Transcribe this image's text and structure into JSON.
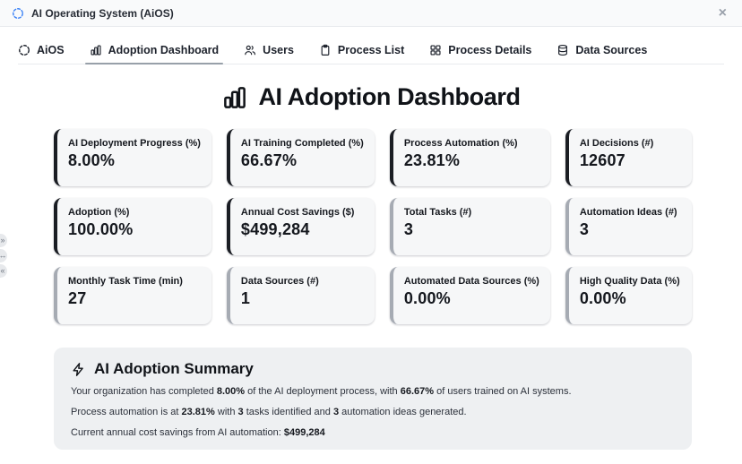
{
  "window": {
    "title": "AI Operating System (AiOS)",
    "app_icon": "dashed-circle",
    "app_icon_color": "#3b82f6",
    "close_label": "×"
  },
  "tabs": [
    {
      "label": "AiOS",
      "icon": "dashed-circle",
      "active": false
    },
    {
      "label": "Adoption Dashboard",
      "icon": "bar-chart",
      "active": true
    },
    {
      "label": "Users",
      "icon": "users",
      "active": false
    },
    {
      "label": "Process List",
      "icon": "clipboard",
      "active": false
    },
    {
      "label": "Process Details",
      "icon": "grid",
      "active": false
    },
    {
      "label": "Data Sources",
      "icon": "database",
      "active": false
    }
  ],
  "heading": {
    "title": "AI Adoption Dashboard",
    "icon": "bar-chart"
  },
  "accent_colors": {
    "dark": "#1a1d23",
    "gray": "#a6abb3"
  },
  "cards": [
    {
      "label": "AI Deployment Progress (%)",
      "value": "8.00%",
      "accent": "#1a1d23"
    },
    {
      "label": "AI Training Completed (%)",
      "value": "66.67%",
      "accent": "#1a1d23"
    },
    {
      "label": "Process Automation (%)",
      "value": "23.81%",
      "accent": "#1a1d23"
    },
    {
      "label": "AI Decisions (#)",
      "value": "12607",
      "accent": "#1a1d23"
    },
    {
      "label": "Adoption (%)",
      "value": "100.00%",
      "accent": "#1a1d23"
    },
    {
      "label": "Annual Cost Savings ($)",
      "value": "$499,284",
      "accent": "#1a1d23"
    },
    {
      "label": "Total Tasks (#)",
      "value": "3",
      "accent": "#a6abb3"
    },
    {
      "label": "Automation Ideas (#)",
      "value": "3",
      "accent": "#a6abb3"
    },
    {
      "label": "Monthly Task Time (min)",
      "value": "27",
      "accent": "#a6abb3"
    },
    {
      "label": "Data Sources (#)",
      "value": "1",
      "accent": "#a6abb3"
    },
    {
      "label": "Automated Data Sources (%)",
      "value": "0.00%",
      "accent": "#a6abb3"
    },
    {
      "label": "High Quality Data (%)",
      "value": "0.00%",
      "accent": "#a6abb3"
    }
  ],
  "summary": {
    "title": "AI Adoption Summary",
    "icon": "bolt",
    "lines": [
      {
        "segments": [
          {
            "t": "Your organization has completed ",
            "b": false
          },
          {
            "t": "8.00%",
            "b": true
          },
          {
            "t": " of the AI deployment process, with ",
            "b": false
          },
          {
            "t": "66.67%",
            "b": true
          },
          {
            "t": " of users trained on AI systems.",
            "b": false
          }
        ]
      },
      {
        "segments": [
          {
            "t": "Process automation is at ",
            "b": false
          },
          {
            "t": "23.81%",
            "b": true
          },
          {
            "t": " with ",
            "b": false
          },
          {
            "t": "3",
            "b": true
          },
          {
            "t": " tasks identified and ",
            "b": false
          },
          {
            "t": "3",
            "b": true
          },
          {
            "t": " automation ideas generated.",
            "b": false
          }
        ]
      },
      {
        "segments": [
          {
            "t": "Current annual cost savings from AI automation: ",
            "b": false
          },
          {
            "t": "$499,284",
            "b": true
          }
        ]
      }
    ]
  },
  "edge_buttons": [
    {
      "name": "panel-expand",
      "glyph": "»"
    },
    {
      "name": "panel-resize",
      "glyph": "↔"
    },
    {
      "name": "panel-collapse",
      "glyph": "«"
    }
  ]
}
